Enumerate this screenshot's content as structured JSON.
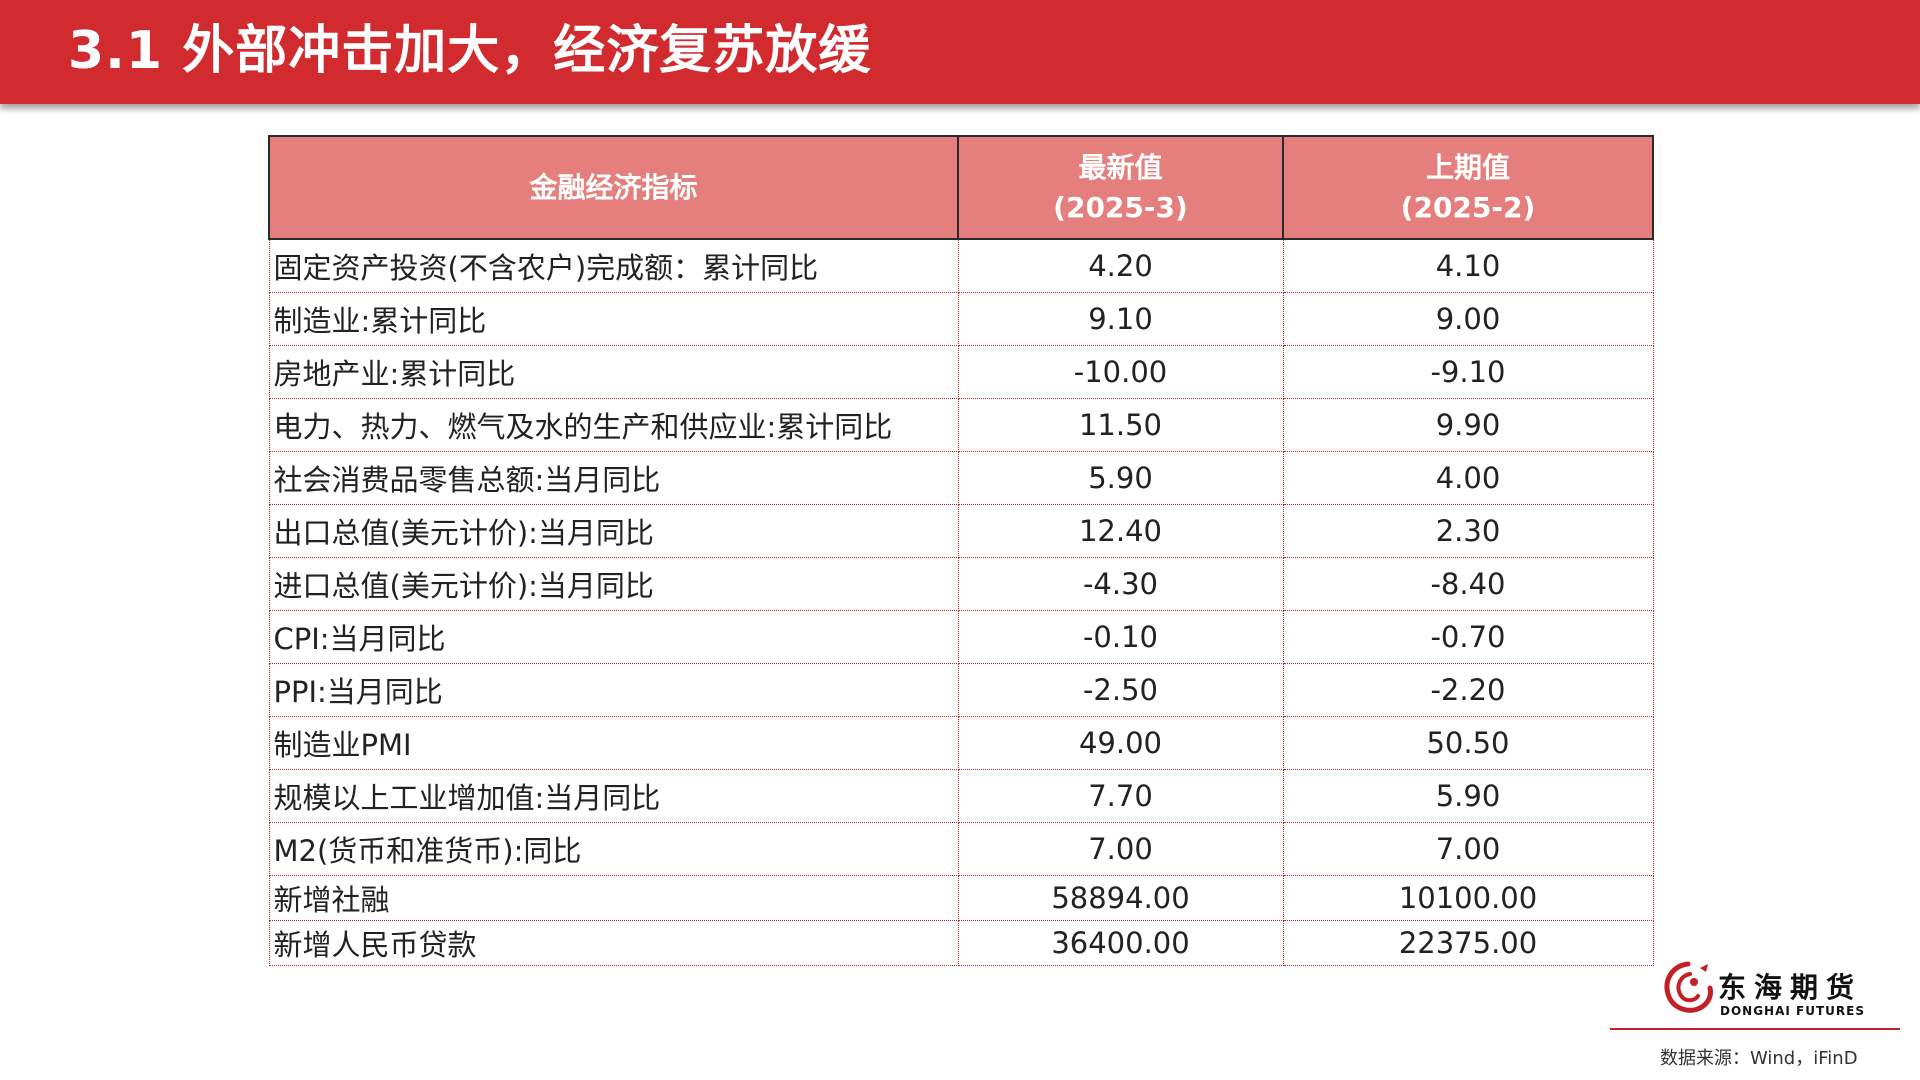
{
  "header": {
    "title": "3.1  外部冲击加大，经济复苏放缓"
  },
  "table": {
    "headers": {
      "indicator": "金融经济指标",
      "latest_line1": "最新值",
      "latest_line2": "(2025-3)",
      "previous_line1": "上期值",
      "previous_line2": "(2025-2)"
    },
    "rows": [
      {
        "label": "固定资产投资(不含农户)完成额：累计同比",
        "latest": "4.20",
        "previous": "4.10"
      },
      {
        "label": "制造业:累计同比",
        "latest": "9.10",
        "previous": "9.00"
      },
      {
        "label": "房地产业:累计同比",
        "latest": "-10.00",
        "previous": "-9.10"
      },
      {
        "label": "电力、热力、燃气及水的生产和供应业:累计同比",
        "latest": "11.50",
        "previous": "9.90"
      },
      {
        "label": "社会消费品零售总额:当月同比",
        "latest": "5.90",
        "previous": "4.00"
      },
      {
        "label": "出口总值(美元计价):当月同比",
        "latest": "12.40",
        "previous": "2.30"
      },
      {
        "label": "进口总值(美元计价):当月同比",
        "latest": "-4.30",
        "previous": "-8.40"
      },
      {
        "label": "CPI:当月同比",
        "latest": "-0.10",
        "previous": "-0.70"
      },
      {
        "label": "PPI:当月同比",
        "latest": "-2.50",
        "previous": "-2.20"
      },
      {
        "label": "制造业PMI",
        "latest": "49.00",
        "previous": "50.50"
      },
      {
        "label": "规模以上工业增加值:当月同比",
        "latest": "7.70",
        "previous": "5.90"
      },
      {
        "label": "M2(货币和准货币):同比",
        "latest": "7.00",
        "previous": "7.00"
      },
      {
        "label": "新增社融",
        "latest": "58894.00",
        "previous": "10100.00"
      },
      {
        "label": "新增人民币贷款",
        "latest": "36400.00",
        "previous": "22375.00"
      }
    ]
  },
  "logo": {
    "cn": "东海期货",
    "en": "DONGHAI FUTURES"
  },
  "footer": {
    "source": "数据来源：Wind，iFinD"
  },
  "colors": {
    "header_bg": "#d22b2f",
    "table_header_bg": "#e57f7d",
    "grid": "#c21f26"
  }
}
